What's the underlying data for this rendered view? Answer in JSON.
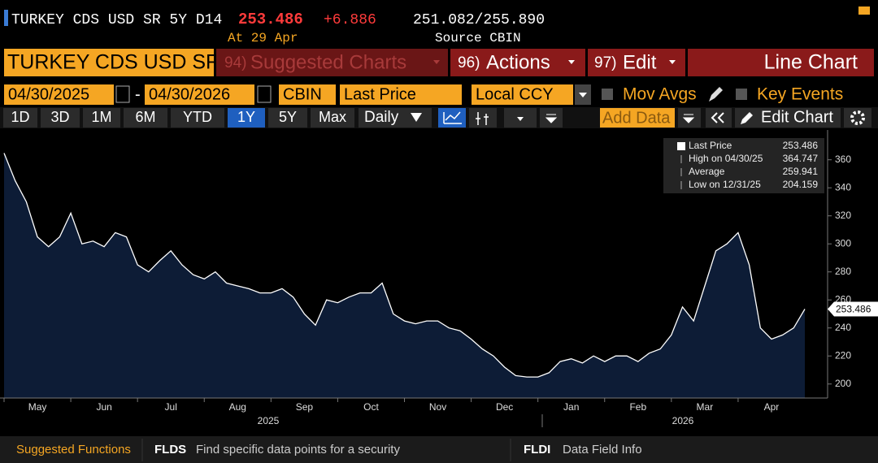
{
  "header": {
    "ticker": "TURKEY CDS USD SR 5Y D14",
    "price": "253.486",
    "change": "+6.886",
    "bid_ask": "251.082/255.890",
    "as_of": "At 29 Apr",
    "source": "Source CBIN"
  },
  "menu": {
    "security": "TURKEY CDS USD SR",
    "suggested_num": "94)",
    "suggested": "Suggested Charts",
    "actions_num": "96)",
    "actions": "Actions",
    "edit_num": "97)",
    "edit": "Edit",
    "chart_type": "Line Chart"
  },
  "controls": {
    "start_date": "04/30/2025",
    "dash": "-",
    "end_date": "04/30/2026",
    "source": "CBIN",
    "field": "Last Price",
    "currency": "Local CCY",
    "mov_avgs": "Mov Avgs",
    "key_events": "Key Events"
  },
  "periods": [
    "1D",
    "3D",
    "1M",
    "6M",
    "YTD",
    "1Y",
    "5Y",
    "Max"
  ],
  "frequency": "Daily",
  "add_data": "Add Data",
  "edit_chart": "Edit Chart",
  "tools": [
    "Track",
    "Annotate",
    "News",
    "Zoom"
  ],
  "chart_data": {
    "type": "area",
    "categories": [
      null,
      null,
      null,
      "May",
      null,
      null,
      null,
      null,
      null,
      "Jun",
      null,
      null,
      null,
      null,
      null,
      "Jul",
      null,
      null,
      null,
      null,
      null,
      "Aug",
      null,
      null,
      null,
      null,
      null,
      "Sep",
      null,
      null,
      null,
      null,
      null,
      "Oct",
      null,
      null,
      null,
      null,
      null,
      "Nov",
      null,
      null,
      null,
      null,
      null,
      "Dec",
      null,
      null,
      null,
      null,
      null,
      "Jan",
      null,
      null,
      null,
      null,
      null,
      "Feb",
      null,
      null,
      null,
      null,
      null,
      "Mar",
      null,
      null,
      null,
      null,
      null,
      "Apr",
      null,
      null,
      null
    ],
    "series": [
      {
        "name": "Last Price",
        "color": "#ffffff",
        "fill": "#0d1c36",
        "values": [
          364.747,
          345,
          330,
          305,
          298,
          305,
          322,
          300,
          302,
          298,
          308,
          305,
          285,
          280,
          288,
          295,
          285,
          278,
          275,
          280,
          272,
          270,
          268,
          265,
          265,
          268,
          262,
          250,
          242,
          260,
          258,
          262,
          265,
          265,
          272,
          250,
          245,
          243,
          245,
          245,
          240,
          238,
          232,
          225,
          220,
          212,
          206,
          205,
          205,
          208,
          216,
          218,
          215,
          220,
          216,
          220,
          220,
          216,
          222,
          225,
          235,
          255,
          245,
          270,
          295,
          300,
          308,
          285,
          240,
          232,
          235,
          240,
          253.486
        ]
      }
    ],
    "annotations": [
      "2025",
      "2026"
    ],
    "ylim": [
      190,
      372
    ],
    "yticks": [
      200,
      220,
      240,
      260,
      280,
      300,
      320,
      340,
      360
    ],
    "grid": false,
    "legend_box": [
      {
        "label": "Last Price",
        "value": "253.486"
      },
      {
        "label": "High on 04/30/25",
        "value": "364.747"
      },
      {
        "label": "Average",
        "value": "259.941"
      },
      {
        "label": "Low on 12/31/25",
        "value": "204.159"
      }
    ]
  },
  "footer": {
    "suggested": "Suggested Functions",
    "f1_code": "FLDS",
    "f1_desc": "Find specific data points for a security",
    "f2_code": "FLDI",
    "f2_desc": "Data Field Info"
  }
}
